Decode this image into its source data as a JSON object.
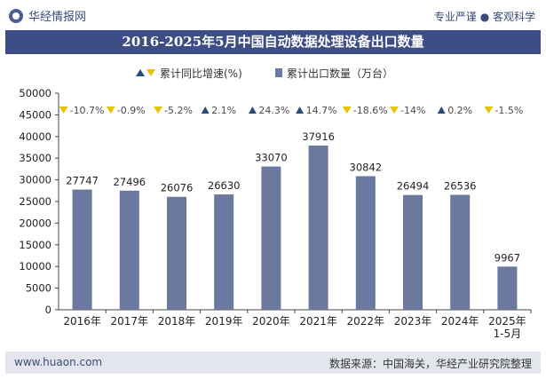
{
  "header": {
    "brand": "华经情报网",
    "tagline": "专业严谨 ● 客观科学"
  },
  "footer": {
    "website": "www.huaon.com",
    "source": "数据来源：中国海关，华经产业研究院整理"
  },
  "colors": {
    "bar": "#6b789f",
    "title_bg": "#3c4e85",
    "up_marker": "#2c4a78",
    "down_marker": "#e8c400",
    "growth_text": "#4a4a4a"
  },
  "chart_data": {
    "type": "bar",
    "title": "2016-2025年5月中国自动数据处理设备出口数量",
    "categories": [
      "2016年",
      "2017年",
      "2018年",
      "2019年",
      "2020年",
      "2021年",
      "2022年",
      "2023年",
      "2024年",
      "2025年\n1-5月"
    ],
    "series": [
      {
        "name": "累计出口数量（万台）",
        "values": [
          27747,
          27496,
          26076,
          26630,
          33070,
          37916,
          30842,
          26494,
          26536,
          9967
        ]
      }
    ],
    "growth": {
      "name": "累计同比增速(%)",
      "labels": [
        "-10.7%",
        "-0.9%",
        "-5.2%",
        "2.1%",
        "24.3%",
        "14.7%",
        "-18.6%",
        "-14%",
        "0.2%",
        "-1.5%"
      ],
      "values": [
        -10.7,
        -0.9,
        -5.2,
        2.1,
        24.3,
        14.7,
        -18.6,
        -14,
        0.2,
        -1.5
      ]
    },
    "ylim": [
      0,
      50000
    ],
    "yticks": [
      0,
      5000,
      10000,
      15000,
      20000,
      25000,
      30000,
      35000,
      40000,
      45000,
      50000
    ],
    "legend_position": "top-center",
    "grid": false
  }
}
